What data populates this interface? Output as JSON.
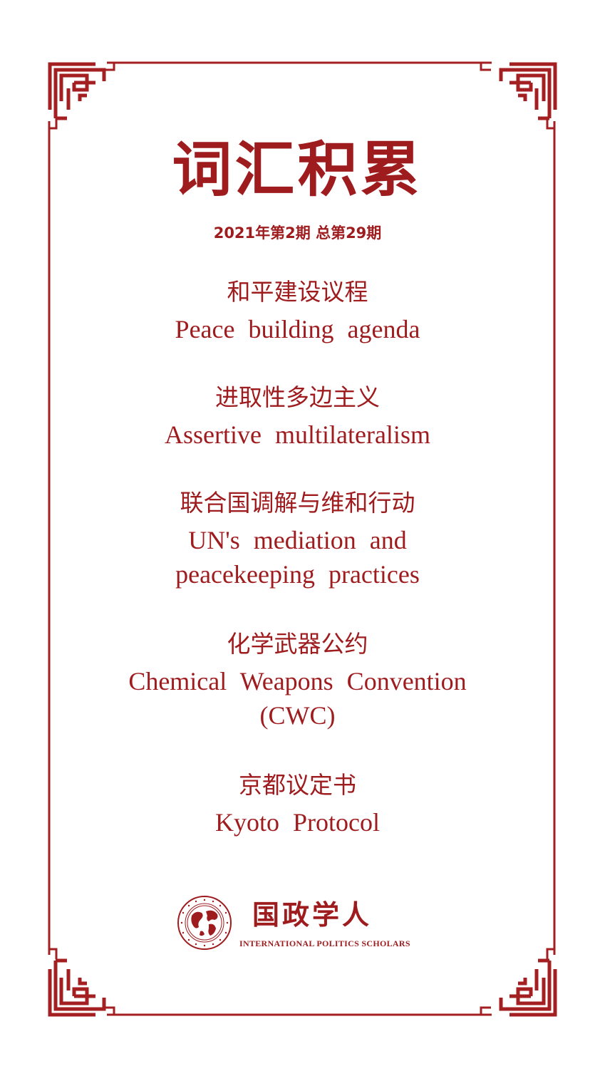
{
  "header": {
    "title": "词汇积累",
    "issue": "2021年第2期 总第29期"
  },
  "terms": [
    {
      "zh": "和平建设议程",
      "en": [
        "Peace building agenda"
      ]
    },
    {
      "zh": "进取性多边主义",
      "en": [
        "Assertive multilateralism"
      ]
    },
    {
      "zh": "联合国调解与维和行动",
      "en": [
        "UN's mediation and",
        "peacekeeping practices"
      ]
    },
    {
      "zh": "化学武器公约",
      "en": [
        "Chemical Weapons Convention",
        "(CWC)"
      ]
    },
    {
      "zh": "京都议定书",
      "en": [
        "Kyoto Protocol"
      ]
    }
  ],
  "brand": {
    "name_zh": "国政学人",
    "name_en": "INTERNATIONAL POLITICS SCHOLARS",
    "logo_icon": "globe-seal-icon"
  },
  "colors": {
    "accent": "#9e1b1e",
    "background": "#ffffff"
  }
}
